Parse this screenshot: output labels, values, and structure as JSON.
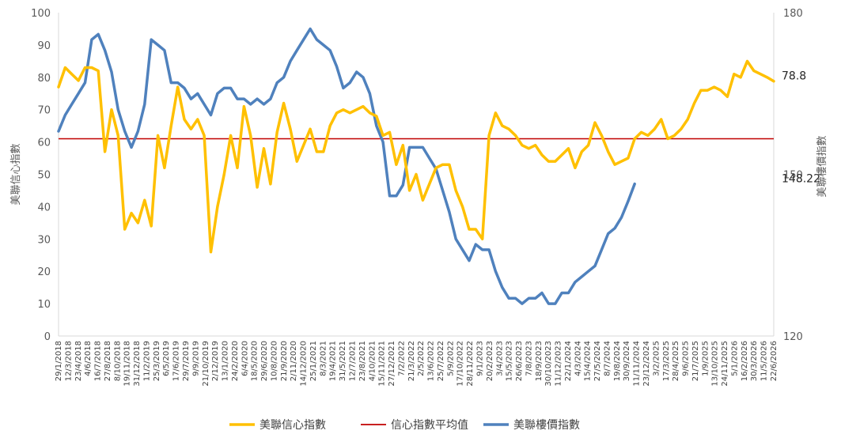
{
  "chart_data": {
    "type": "line",
    "title": "",
    "ylabel": "美聯信心指數",
    "y2label": "美聯樓價指數",
    "ylim": [
      0,
      100
    ],
    "y2lim": [
      120,
      180
    ],
    "yticks": [
      0,
      10,
      20,
      30,
      40,
      50,
      60,
      70,
      80,
      90,
      100
    ],
    "y2ticks": [
      120,
      150,
      180
    ],
    "x_tick_labels": [
      "29/1/2018",
      "12/3/2018",
      "23/4/2018",
      "4/6/2018",
      "16/7/2018",
      "27/8/2018",
      "8/10/2018",
      "19/11/2018",
      "31/12/2018",
      "11/2/2019",
      "25/3/2019",
      "6/5/2019",
      "17/6/2019",
      "29/7/2019",
      "9/9/2019",
      "21/10/2019",
      "2/12/2019",
      "13/1/2020",
      "24/2/2020",
      "6/4/2020",
      "18/5/2020",
      "29/6/2020",
      "10/8/2020",
      "21/9/2020",
      "2/11/2020",
      "14/12/2020",
      "25/1/2021",
      "8/3/2021",
      "19/4/2021",
      "31/5/2021",
      "12/7/2021",
      "23/8/2021",
      "4/10/2021",
      "15/11/2021",
      "27/12/2021",
      "7/2/2022",
      "21/3/2022",
      "2/5/2022",
      "13/6/2022",
      "25/7/2022",
      "5/9/2022",
      "17/10/2022",
      "28/11/2022",
      "9/1/2023",
      "20/2/2023",
      "3/4/2023",
      "15/5/2023",
      "26/6/2023",
      "7/8/2023",
      "18/9/2023",
      "30/10/2023",
      "11/12/2023",
      "22/1/2024",
      "4/3/2024",
      "15/4/2024",
      "27/5/2024",
      "8/7/2024",
      "19/8/2024",
      "30/9/2024",
      "11/11/2024",
      "23/12/2024",
      "3/2/2025",
      "17/3/2025",
      "28/4/2025",
      "9/6/2025",
      "21/7/2025",
      "1/9/2025",
      "13/10/2025",
      "24/11/2025",
      "5/1/2026",
      "16/2/2026",
      "30/3/2026",
      "11/5/2026",
      "22/6/2026"
    ],
    "average_line": {
      "name": "信心指數平均值",
      "value": 61,
      "color": "#c00000"
    },
    "series": [
      {
        "name": "美聯信心指數",
        "axis": "left",
        "color": "#ffc000",
        "points": [
          [
            0,
            77
          ],
          [
            1,
            83
          ],
          [
            2,
            81
          ],
          [
            3,
            79
          ],
          [
            4,
            83
          ],
          [
            5,
            83
          ],
          [
            6,
            82
          ],
          [
            7,
            57
          ],
          [
            8,
            70
          ],
          [
            9,
            62
          ],
          [
            10,
            33
          ],
          [
            11,
            38
          ],
          [
            12,
            35
          ],
          [
            13,
            42
          ],
          [
            14,
            34
          ],
          [
            15,
            62
          ],
          [
            16,
            52
          ],
          [
            17,
            65
          ],
          [
            18,
            77
          ],
          [
            19,
            67
          ],
          [
            20,
            64
          ],
          [
            21,
            67
          ],
          [
            22,
            62
          ],
          [
            23,
            26
          ],
          [
            24,
            40
          ],
          [
            25,
            50
          ],
          [
            26,
            62
          ],
          [
            27,
            52
          ],
          [
            28,
            71
          ],
          [
            29,
            62
          ],
          [
            30,
            46
          ],
          [
            31,
            58
          ],
          [
            32,
            47
          ],
          [
            33,
            63
          ],
          [
            34,
            72
          ],
          [
            35,
            64
          ],
          [
            36,
            54
          ],
          [
            37,
            59
          ],
          [
            38,
            64
          ],
          [
            39,
            57
          ],
          [
            40,
            57
          ],
          [
            41,
            65
          ],
          [
            42,
            69
          ],
          [
            43,
            70
          ],
          [
            44,
            69
          ],
          [
            45,
            70
          ],
          [
            46,
            71
          ],
          [
            47,
            69
          ],
          [
            48,
            68
          ],
          [
            49,
            62
          ],
          [
            50,
            63
          ],
          [
            51,
            53
          ],
          [
            52,
            59
          ],
          [
            53,
            45
          ],
          [
            54,
            50
          ],
          [
            55,
            42
          ],
          [
            56,
            47
          ],
          [
            57,
            52
          ],
          [
            58,
            53
          ],
          [
            59,
            53
          ],
          [
            60,
            45
          ],
          [
            61,
            40
          ],
          [
            62,
            33
          ],
          [
            63,
            33
          ],
          [
            64,
            30
          ],
          [
            65,
            62
          ],
          [
            66,
            69
          ],
          [
            67,
            65
          ],
          [
            68,
            64
          ],
          [
            69,
            62
          ],
          [
            70,
            59
          ],
          [
            71,
            58
          ],
          [
            72,
            59
          ],
          [
            73,
            56
          ],
          [
            74,
            54
          ],
          [
            75,
            54
          ],
          [
            76,
            56
          ],
          [
            77,
            58
          ],
          [
            78,
            52
          ],
          [
            79,
            57
          ],
          [
            80,
            59
          ],
          [
            81,
            66
          ],
          [
            82,
            62
          ],
          [
            83,
            57
          ],
          [
            84,
            53
          ],
          [
            85,
            54
          ],
          [
            86,
            55
          ],
          [
            87,
            61
          ],
          [
            88,
            63
          ],
          [
            89,
            62
          ],
          [
            90,
            64
          ],
          [
            91,
            67
          ],
          [
            92,
            61
          ],
          [
            93,
            62
          ],
          [
            94,
            64
          ],
          [
            95,
            67
          ],
          [
            96,
            72
          ],
          [
            97,
            76
          ],
          [
            98,
            76
          ],
          [
            99,
            77
          ],
          [
            100,
            76
          ],
          [
            101,
            74
          ],
          [
            102,
            81
          ],
          [
            103,
            80
          ],
          [
            104,
            85
          ],
          [
            105,
            82
          ],
          [
            106,
            81
          ],
          [
            107,
            80
          ],
          [
            108,
            78.8
          ]
        ]
      },
      {
        "name": "美聯樓價指數",
        "axis": "right",
        "color": "#4f81bd",
        "points": [
          [
            0,
            158
          ],
          [
            1,
            161
          ],
          [
            2,
            163
          ],
          [
            3,
            165
          ],
          [
            4,
            167
          ],
          [
            5,
            175
          ],
          [
            6,
            176
          ],
          [
            7,
            173
          ],
          [
            8,
            169
          ],
          [
            9,
            162
          ],
          [
            10,
            158
          ],
          [
            11,
            155
          ],
          [
            12,
            158
          ],
          [
            13,
            163
          ],
          [
            14,
            175
          ],
          [
            15,
            174
          ],
          [
            16,
            173
          ],
          [
            17,
            167
          ],
          [
            18,
            167
          ],
          [
            19,
            166
          ],
          [
            20,
            164
          ],
          [
            21,
            165
          ],
          [
            22,
            163
          ],
          [
            23,
            161
          ],
          [
            24,
            165
          ],
          [
            25,
            166
          ],
          [
            26,
            166
          ],
          [
            27,
            164
          ],
          [
            28,
            164
          ],
          [
            29,
            163
          ],
          [
            30,
            164
          ],
          [
            31,
            163
          ],
          [
            32,
            164
          ],
          [
            33,
            167
          ],
          [
            34,
            168
          ],
          [
            35,
            171
          ],
          [
            36,
            173
          ],
          [
            37,
            175
          ],
          [
            38,
            177
          ],
          [
            39,
            175
          ],
          [
            40,
            174
          ],
          [
            41,
            173
          ],
          [
            42,
            170
          ],
          [
            43,
            166
          ],
          [
            44,
            167
          ],
          [
            45,
            169
          ],
          [
            46,
            168
          ],
          [
            47,
            165
          ],
          [
            48,
            159
          ],
          [
            49,
            156
          ],
          [
            50,
            146
          ],
          [
            51,
            146
          ],
          [
            52,
            148
          ],
          [
            53,
            155
          ],
          [
            54,
            155
          ],
          [
            55,
            155
          ],
          [
            56,
            153
          ],
          [
            57,
            151
          ],
          [
            58,
            147
          ],
          [
            59,
            143
          ],
          [
            60,
            138
          ],
          [
            61,
            136
          ],
          [
            62,
            134
          ],
          [
            63,
            137
          ],
          [
            64,
            136
          ],
          [
            65,
            136
          ],
          [
            66,
            132
          ],
          [
            67,
            129
          ],
          [
            68,
            127
          ],
          [
            69,
            127
          ],
          [
            70,
            126
          ],
          [
            71,
            127
          ],
          [
            72,
            127
          ],
          [
            73,
            128
          ],
          [
            74,
            126
          ],
          [
            75,
            126
          ],
          [
            76,
            128
          ],
          [
            77,
            128
          ],
          [
            78,
            130
          ],
          [
            79,
            131
          ],
          [
            80,
            132
          ],
          [
            81,
            133
          ],
          [
            82,
            136
          ],
          [
            83,
            139
          ],
          [
            84,
            140
          ],
          [
            85,
            142
          ],
          [
            86,
            145
          ],
          [
            87,
            148.22
          ]
        ]
      }
    ],
    "end_labels": {
      "confidence": "78.8",
      "price": "148.22"
    }
  }
}
